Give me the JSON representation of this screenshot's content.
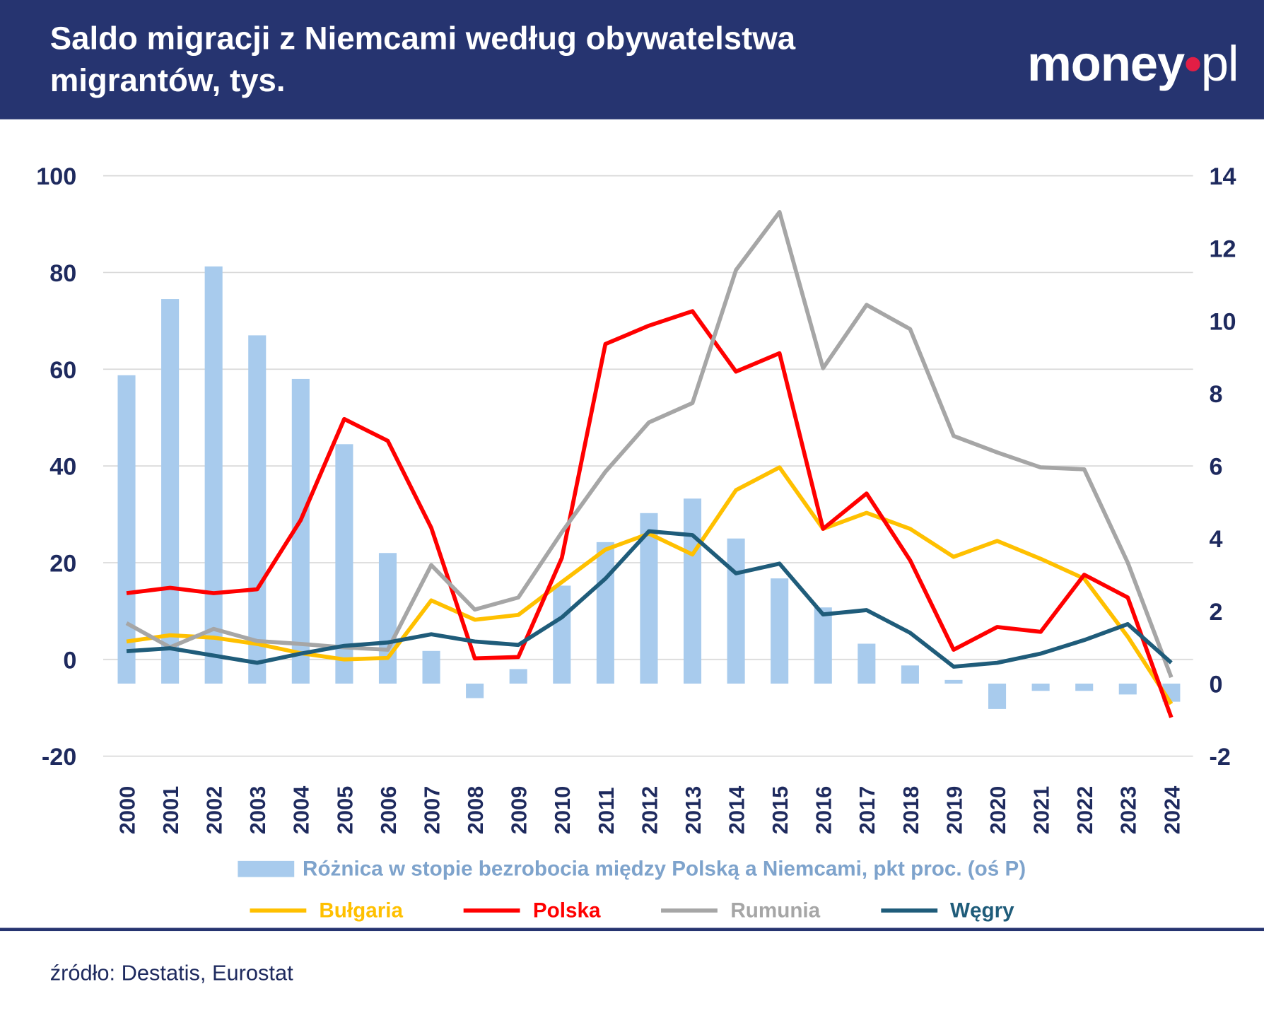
{
  "header": {
    "title": "Saldo migracji z Niemcami według obywatelstwa migrantów, tys.",
    "logo": "money.pl"
  },
  "source": "źródło: Destatis, Eurostat",
  "colors": {
    "header": "#263470",
    "bars": "#a8cbed",
    "Bułgaria": "#ffc000",
    "Polska": "#ff0000",
    "Rumunia": "#a6a6a6",
    "Węgry": "#1f5c7a"
  },
  "chart_data": {
    "type": "bar+line",
    "categories": [
      "2000",
      "2001",
      "2002",
      "2003",
      "2004",
      "2005",
      "2006",
      "2007",
      "2008",
      "2009",
      "2010",
      "2011",
      "2012",
      "2013",
      "2014",
      "2015",
      "2016",
      "2017",
      "2018",
      "2019",
      "2020",
      "2021",
      "2022",
      "2023",
      "2024"
    ],
    "ylim_left": [
      -20,
      100
    ],
    "yticks_left": [
      "100",
      "80",
      "60",
      "40",
      "20",
      "0",
      "-20"
    ],
    "ylim_right": [
      -2,
      14
    ],
    "yticks_right": [
      "14",
      "12",
      "10",
      "8",
      "6",
      "4",
      "2",
      "0",
      "-2"
    ],
    "grid": true,
    "legend_position": "bottom",
    "bar_series": {
      "name": "Różnica w stopie bezrobocia między Polską a Niemcami, pkt proc. (oś P)",
      "axis": "right",
      "values": [
        8.5,
        10.6,
        11.5,
        9.6,
        8.4,
        6.6,
        3.6,
        0.9,
        -0.4,
        0.4,
        2.7,
        3.9,
        4.7,
        5.1,
        4.0,
        2.9,
        2.1,
        1.1,
        0.5,
        0.1,
        -0.7,
        -0.2,
        -0.2,
        -0.3,
        -0.5
      ]
    },
    "series": [
      {
        "name": "Bułgaria",
        "axis": "left",
        "values": [
          3.7,
          5,
          4.5,
          3.2,
          1.3,
          0,
          0.3,
          12.2,
          8.2,
          9.2,
          16,
          22.7,
          26,
          21.7,
          35,
          39.7,
          27,
          30.3,
          27,
          21.2,
          24.5,
          20.8,
          16.7,
          4.7,
          -9.2
        ]
      },
      {
        "name": "Polska",
        "axis": "left",
        "values": [
          13.7,
          14.8,
          13.7,
          14.5,
          28.8,
          49.7,
          45.2,
          27.2,
          0.2,
          0.5,
          21,
          65.2,
          69,
          72,
          59.5,
          63.3,
          27,
          34.3,
          20.5,
          2,
          6.7,
          5.7,
          17.5,
          12.8,
          -12
        ]
      },
      {
        "name": "Rumunia",
        "axis": "left",
        "values": [
          7.5,
          2.5,
          6.3,
          3.8,
          3.2,
          2.5,
          2,
          19.5,
          10.3,
          12.8,
          26.3,
          38.8,
          49,
          53,
          80.5,
          92.5,
          60.2,
          73.3,
          68.3,
          46.2,
          42.8,
          39.7,
          39.3,
          20,
          -3.7
        ]
      },
      {
        "name": "Węgry",
        "axis": "left",
        "values": [
          1.7,
          2.3,
          0.8,
          -0.7,
          1.2,
          2.8,
          3.5,
          5.2,
          3.7,
          3,
          8.7,
          16.7,
          26.5,
          25.7,
          17.8,
          19.8,
          9.3,
          10.2,
          5.5,
          -1.5,
          -0.7,
          1.2,
          4,
          7.3,
          -0.7
        ]
      }
    ]
  }
}
